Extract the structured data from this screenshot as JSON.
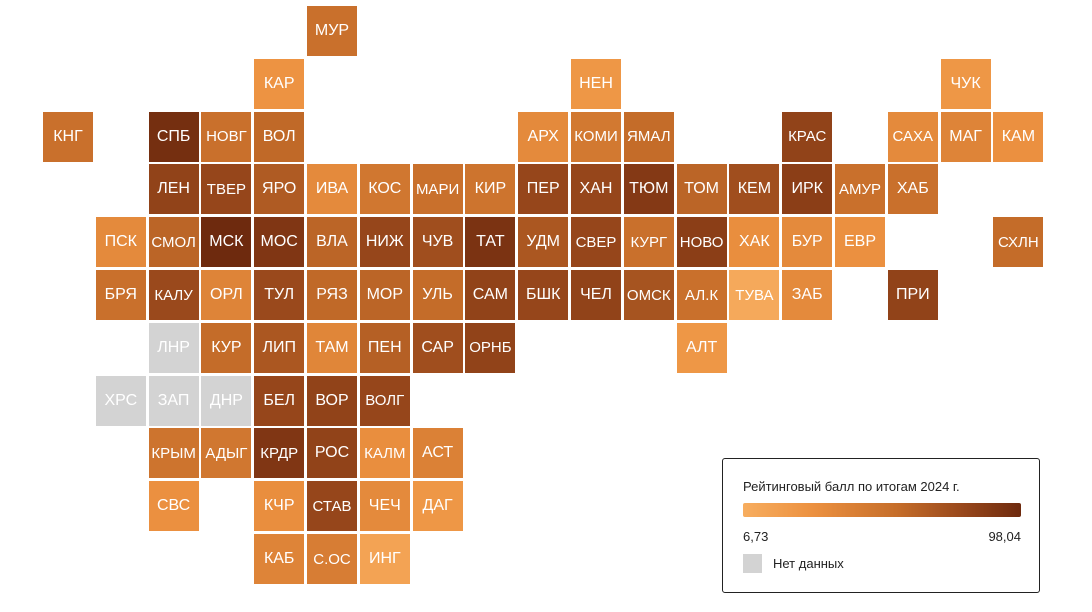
{
  "chart_data": {
    "type": "heatmap",
    "legend": {
      "title": "Рейтинговый балл по итогам 2024 г.",
      "min_label": "6,73",
      "max_label": "98,04",
      "min": 6.73,
      "max": 98.04,
      "color_min": "#f7ad5f",
      "color_max": "#6e2a0e",
      "no_data_label": "Нет данных",
      "no_data_color": "#d3d3d3"
    },
    "regions": [
      {
        "code": "МУР",
        "col": 5,
        "row": 0,
        "value": 55
      },
      {
        "code": "КАР",
        "col": 4,
        "row": 1,
        "value": 28
      },
      {
        "code": "НЕН",
        "col": 10,
        "row": 1,
        "value": 25
      },
      {
        "code": "ЧУК",
        "col": 17,
        "row": 1,
        "value": 25
      },
      {
        "code": "КНГ",
        "col": 0,
        "row": 2,
        "value": 55
      },
      {
        "code": "СПБ",
        "col": 2,
        "row": 2,
        "value": 95
      },
      {
        "code": "НОВГ",
        "col": 3,
        "row": 2,
        "value": 55
      },
      {
        "code": "ВОЛ",
        "col": 4,
        "row": 2,
        "value": 60
      },
      {
        "code": "АРХ",
        "col": 9,
        "row": 2,
        "value": 35
      },
      {
        "code": "КОМИ",
        "col": 10,
        "row": 2,
        "value": 48
      },
      {
        "code": "ЯМАЛ",
        "col": 11,
        "row": 2,
        "value": 58
      },
      {
        "code": "КРАС",
        "col": 14,
        "row": 2,
        "value": 82
      },
      {
        "code": "САХА",
        "col": 16,
        "row": 2,
        "value": 35
      },
      {
        "code": "МАГ",
        "col": 17,
        "row": 2,
        "value": 40
      },
      {
        "code": "КАМ",
        "col": 18,
        "row": 2,
        "value": 30
      },
      {
        "code": "ЛЕН",
        "col": 2,
        "row": 3,
        "value": 82
      },
      {
        "code": "ТВЕР",
        "col": 3,
        "row": 3,
        "value": 80
      },
      {
        "code": "ЯРО",
        "col": 4,
        "row": 3,
        "value": 68
      },
      {
        "code": "ИВА",
        "col": 5,
        "row": 3,
        "value": 35
      },
      {
        "code": "КОС",
        "col": 6,
        "row": 3,
        "value": 50
      },
      {
        "code": "МАРИ",
        "col": 7,
        "row": 3,
        "value": 55
      },
      {
        "code": "КИР",
        "col": 8,
        "row": 3,
        "value": 52
      },
      {
        "code": "ПЕР",
        "col": 9,
        "row": 3,
        "value": 80
      },
      {
        "code": "ХАН",
        "col": 10,
        "row": 3,
        "value": 80
      },
      {
        "code": "ТЮМ",
        "col": 11,
        "row": 3,
        "value": 88
      },
      {
        "code": "ТОМ",
        "col": 12,
        "row": 3,
        "value": 62
      },
      {
        "code": "КЕМ",
        "col": 13,
        "row": 3,
        "value": 75
      },
      {
        "code": "ИРК",
        "col": 14,
        "row": 3,
        "value": 85
      },
      {
        "code": "АМУР",
        "col": 15,
        "row": 3,
        "value": 55
      },
      {
        "code": "ХАБ",
        "col": 16,
        "row": 3,
        "value": 55
      },
      {
        "code": "ПСК",
        "col": 1,
        "row": 4,
        "value": 35
      },
      {
        "code": "СМОЛ",
        "col": 2,
        "row": 4,
        "value": 62
      },
      {
        "code": "МСК",
        "col": 3,
        "row": 4,
        "value": 98
      },
      {
        "code": "МОС",
        "col": 4,
        "row": 4,
        "value": 90
      },
      {
        "code": "ВЛА",
        "col": 5,
        "row": 4,
        "value": 62
      },
      {
        "code": "НИЖ",
        "col": 6,
        "row": 4,
        "value": 80
      },
      {
        "code": "ЧУВ",
        "col": 7,
        "row": 4,
        "value": 75
      },
      {
        "code": "ТАТ",
        "col": 8,
        "row": 4,
        "value": 92
      },
      {
        "code": "УДМ",
        "col": 9,
        "row": 4,
        "value": 70
      },
      {
        "code": "СВЕР",
        "col": 10,
        "row": 4,
        "value": 80
      },
      {
        "code": "КУРГ",
        "col": 11,
        "row": 4,
        "value": 55
      },
      {
        "code": "НОВО",
        "col": 12,
        "row": 4,
        "value": 85
      },
      {
        "code": "ХАК",
        "col": 13,
        "row": 4,
        "value": 32
      },
      {
        "code": "БУР",
        "col": 14,
        "row": 4,
        "value": 35
      },
      {
        "code": "ЕВР",
        "col": 15,
        "row": 4,
        "value": 30
      },
      {
        "code": "СХЛН",
        "col": 18,
        "row": 4,
        "value": 58
      },
      {
        "code": "БРЯ",
        "col": 1,
        "row": 5,
        "value": 55
      },
      {
        "code": "КАЛУ",
        "col": 2,
        "row": 5,
        "value": 78
      },
      {
        "code": "ОРЛ",
        "col": 3,
        "row": 5,
        "value": 40
      },
      {
        "code": "ТУЛ",
        "col": 4,
        "row": 5,
        "value": 78
      },
      {
        "code": "РЯЗ",
        "col": 5,
        "row": 5,
        "value": 60
      },
      {
        "code": "МОР",
        "col": 6,
        "row": 5,
        "value": 62
      },
      {
        "code": "УЛЬ",
        "col": 7,
        "row": 5,
        "value": 58
      },
      {
        "code": "САМ",
        "col": 8,
        "row": 5,
        "value": 82
      },
      {
        "code": "БШК",
        "col": 9,
        "row": 5,
        "value": 80
      },
      {
        "code": "ЧЕЛ",
        "col": 10,
        "row": 5,
        "value": 82
      },
      {
        "code": "ОМСК",
        "col": 11,
        "row": 5,
        "value": 72
      },
      {
        "code": "АЛ.К",
        "col": 12,
        "row": 5,
        "value": 55
      },
      {
        "code": "ТУВА",
        "col": 13,
        "row": 5,
        "value": 10
      },
      {
        "code": "ЗАБ",
        "col": 14,
        "row": 5,
        "value": 35
      },
      {
        "code": "ПРИ",
        "col": 16,
        "row": 5,
        "value": 82
      },
      {
        "code": "ЛНР",
        "col": 2,
        "row": 6,
        "value": null
      },
      {
        "code": "КУР",
        "col": 3,
        "row": 6,
        "value": 58
      },
      {
        "code": "ЛИП",
        "col": 4,
        "row": 6,
        "value": 70
      },
      {
        "code": "ТАМ",
        "col": 5,
        "row": 6,
        "value": 38
      },
      {
        "code": "ПЕН",
        "col": 6,
        "row": 6,
        "value": 65
      },
      {
        "code": "САР",
        "col": 7,
        "row": 6,
        "value": 75
      },
      {
        "code": "ОРНБ",
        "col": 8,
        "row": 6,
        "value": 82
      },
      {
        "code": "АЛТ",
        "col": 12,
        "row": 6,
        "value": 25
      },
      {
        "code": "ХРС",
        "col": 1,
        "row": 7,
        "value": null
      },
      {
        "code": "ЗАП",
        "col": 2,
        "row": 7,
        "value": null
      },
      {
        "code": "ДНР",
        "col": 3,
        "row": 7,
        "value": null
      },
      {
        "code": "БЕЛ",
        "col": 4,
        "row": 7,
        "value": 80
      },
      {
        "code": "ВОР",
        "col": 5,
        "row": 7,
        "value": 82
      },
      {
        "code": "ВОЛГ",
        "col": 6,
        "row": 7,
        "value": 80
      },
      {
        "code": "КРЫМ",
        "col": 2,
        "row": 8,
        "value": 52
      },
      {
        "code": "АДЫГ",
        "col": 3,
        "row": 8,
        "value": 50
      },
      {
        "code": "КРДР",
        "col": 4,
        "row": 8,
        "value": 90
      },
      {
        "code": "РОС",
        "col": 5,
        "row": 8,
        "value": 82
      },
      {
        "code": "КАЛМ",
        "col": 6,
        "row": 8,
        "value": 32
      },
      {
        "code": "АСТ",
        "col": 7,
        "row": 8,
        "value": 42
      },
      {
        "code": "СВС",
        "col": 2,
        "row": 9,
        "value": 30
      },
      {
        "code": "КЧР",
        "col": 4,
        "row": 9,
        "value": 32
      },
      {
        "code": "СТАВ",
        "col": 5,
        "row": 9,
        "value": 80
      },
      {
        "code": "ЧЕЧ",
        "col": 6,
        "row": 9,
        "value": 35
      },
      {
        "code": "ДАГ",
        "col": 7,
        "row": 9,
        "value": 25
      },
      {
        "code": "КАБ",
        "col": 4,
        "row": 10,
        "value": 40
      },
      {
        "code": "С.ОС",
        "col": 5,
        "row": 10,
        "value": 45
      },
      {
        "code": "ИНГ",
        "col": 6,
        "row": 10,
        "value": 15
      }
    ]
  }
}
